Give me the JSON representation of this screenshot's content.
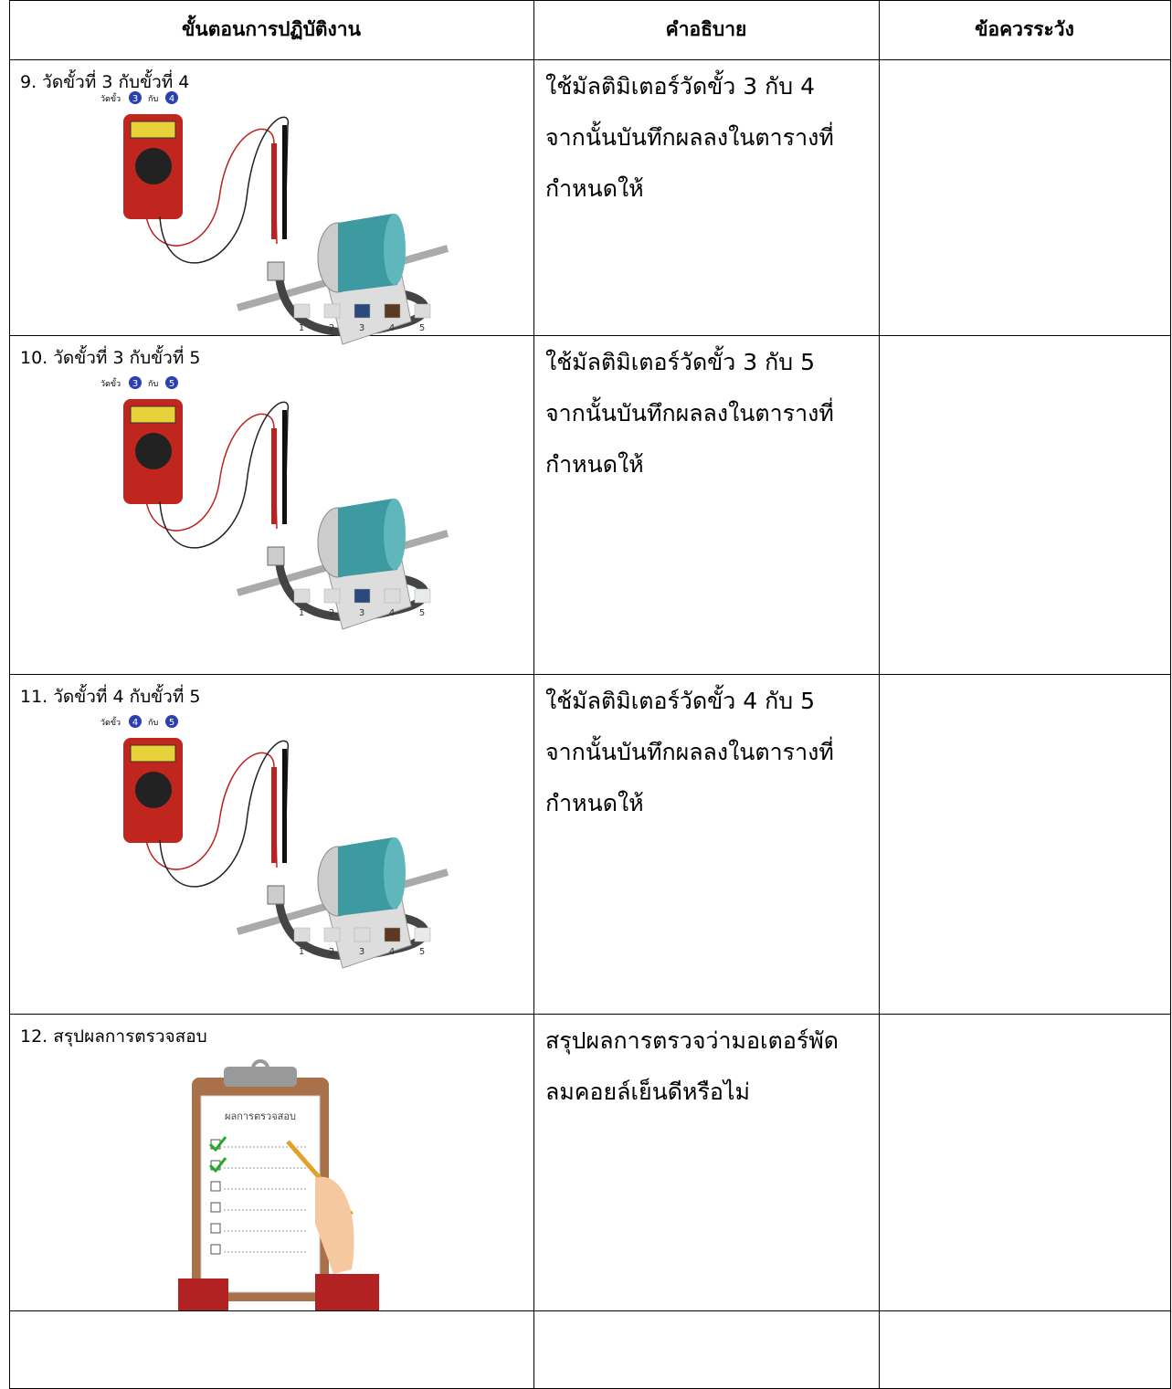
{
  "table": {
    "header": [
      "ขั้นตอนการปฏิบัติงาน",
      "คำอธิบาย",
      "ข้อควรระวัง"
    ],
    "rows": [
      {
        "step": "9. วัดขั้วที่ 3 กับขั้วที่ 4",
        "description": [
          "ใช้มัลติมิเตอร์วัดขั้ว 3 กับ 4",
          "จากนั้นบันทึกผลลงในตารางที่",
          "กำหนดให้"
        ],
        "figure": {
          "label": "วัดขั้ว",
          "a": "3",
          "conj": "กับ",
          "b": "4",
          "terminals": [
            "1",
            "2",
            "3",
            "4",
            "5"
          ],
          "terminal_colors": [
            "#dcdcdc",
            "#dcdcdc",
            "#2b4a7a",
            "#5a3a22",
            "#dcdcdc"
          ]
        }
      },
      {
        "step": "10. วัดขั้วที่ 3 กับขั้วที่ 5",
        "description": [
          "ใช้มัลติมิเตอร์วัดขั้ว 3 กับ 5",
          "จากนั้นบันทึกผลลงในตารางที่",
          "กำหนดให้"
        ],
        "figure": {
          "label": "วัดขั้ว",
          "a": "3",
          "conj": "กับ",
          "b": "5",
          "terminals": [
            "1",
            "2",
            "3",
            "4",
            "5"
          ],
          "terminal_colors": [
            "#dcdcdc",
            "#dcdcdc",
            "#2b4a7a",
            "#dcdcdc",
            "#e8ece8"
          ]
        }
      },
      {
        "step": "11. วัดขั้วที่ 4 กับขั้วที่ 5",
        "description": [
          "ใช้มัลติมิเตอร์วัดขั้ว 4 กับ 5",
          "จากนั้นบันทึกผลลงในตารางที่",
          "กำหนดให้"
        ],
        "figure": {
          "label": "วัดขั้ว",
          "a": "4",
          "conj": "กับ",
          "b": "5",
          "terminals": [
            "1",
            "2",
            "3",
            "4",
            "5"
          ],
          "terminal_colors": [
            "#dcdcdc",
            "#dcdcdc",
            "#dcdcdc",
            "#5a3a22",
            "#e8ece8"
          ]
        }
      },
      {
        "step": "12. สรุปผลการตรวจสอบ",
        "description": [
          "สรุปผลการตรวจว่ามอเตอร์พัด",
          "ลมคอยล์เย็นดีหรือไม่"
        ],
        "clipboard": {
          "title": "ผลการตรวจสอบ"
        }
      }
    ]
  }
}
